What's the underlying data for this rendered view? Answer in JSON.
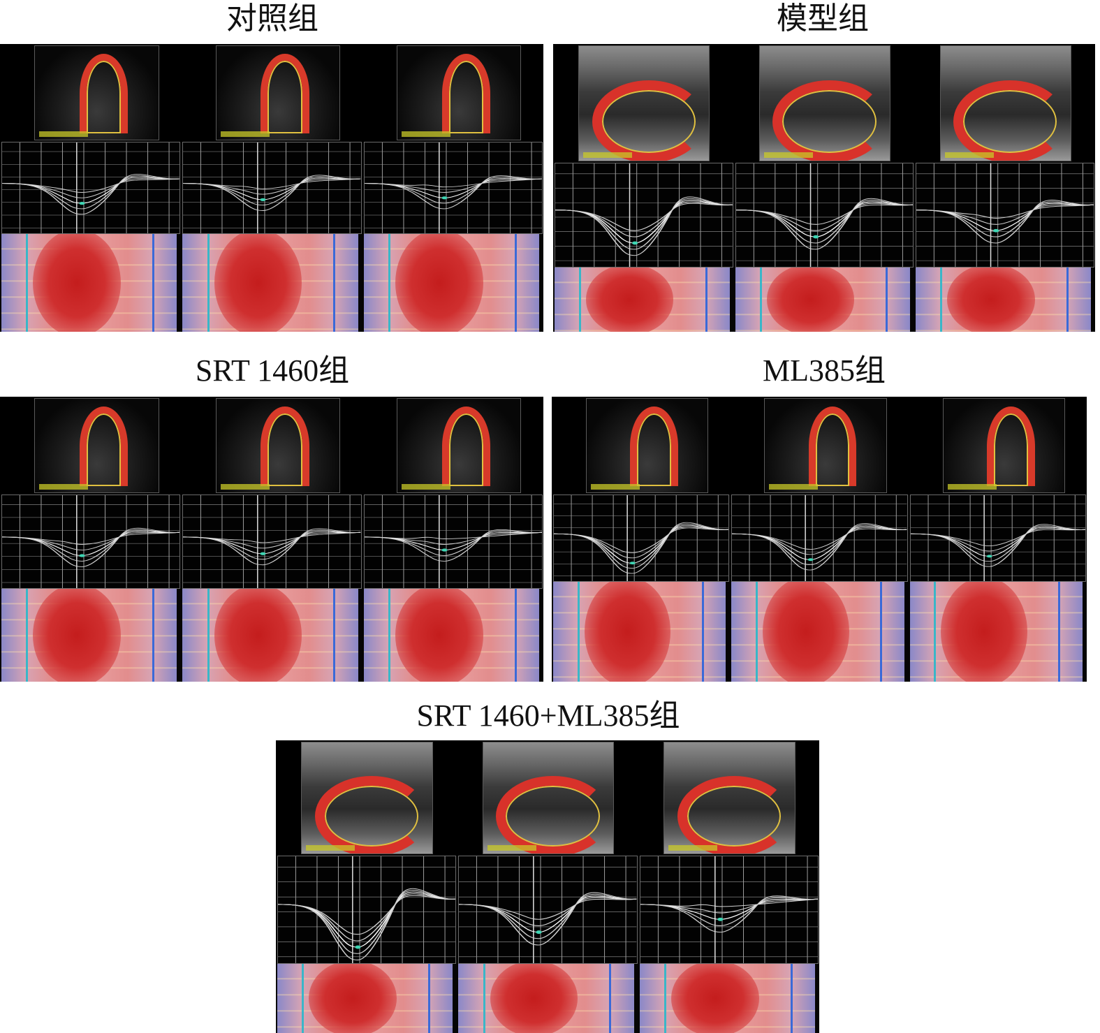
{
  "titles": {
    "control": "对照组",
    "model": "模型组",
    "srt1460": "SRT 1460组",
    "ml385": "ML385组",
    "combo": "SRT 1460+ML385组"
  },
  "colors": {
    "panel_bg": "#050505",
    "grid": "#bdbdbd",
    "curve": "#e8e8e8",
    "map_red": "#c41d1d",
    "map_blue": "#8a88c8"
  }
}
